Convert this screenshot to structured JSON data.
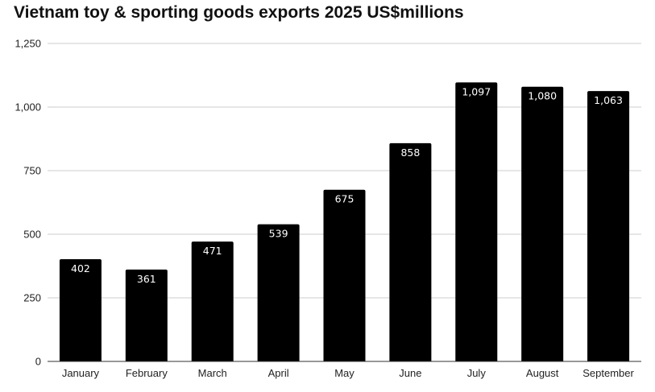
{
  "chart_data": {
    "type": "bar",
    "title": "Vietnam toy & sporting goods exports 2025 US$millions",
    "xlabel": "",
    "ylabel": "",
    "categories": [
      "January",
      "February",
      "March",
      "April",
      "May",
      "June",
      "July",
      "August",
      "September"
    ],
    "values": [
      402,
      361,
      471,
      539,
      675,
      858,
      1097,
      1080,
      1063
    ],
    "data_labels": [
      "402",
      "361",
      "471",
      "539",
      "675",
      "858",
      "1,097",
      "1,080",
      "1,063"
    ],
    "ylim": [
      0,
      1250
    ],
    "yticks": [
      0,
      250,
      500,
      750,
      1000,
      1250
    ],
    "ytick_labels": [
      "0",
      "250",
      "500",
      "750",
      "1,000",
      "1,250"
    ],
    "grid": true,
    "legend": "none",
    "colors": {
      "bar": "#000000",
      "grid": "#cccccc",
      "axis": "#333333",
      "label_text": "#ffffff"
    }
  }
}
